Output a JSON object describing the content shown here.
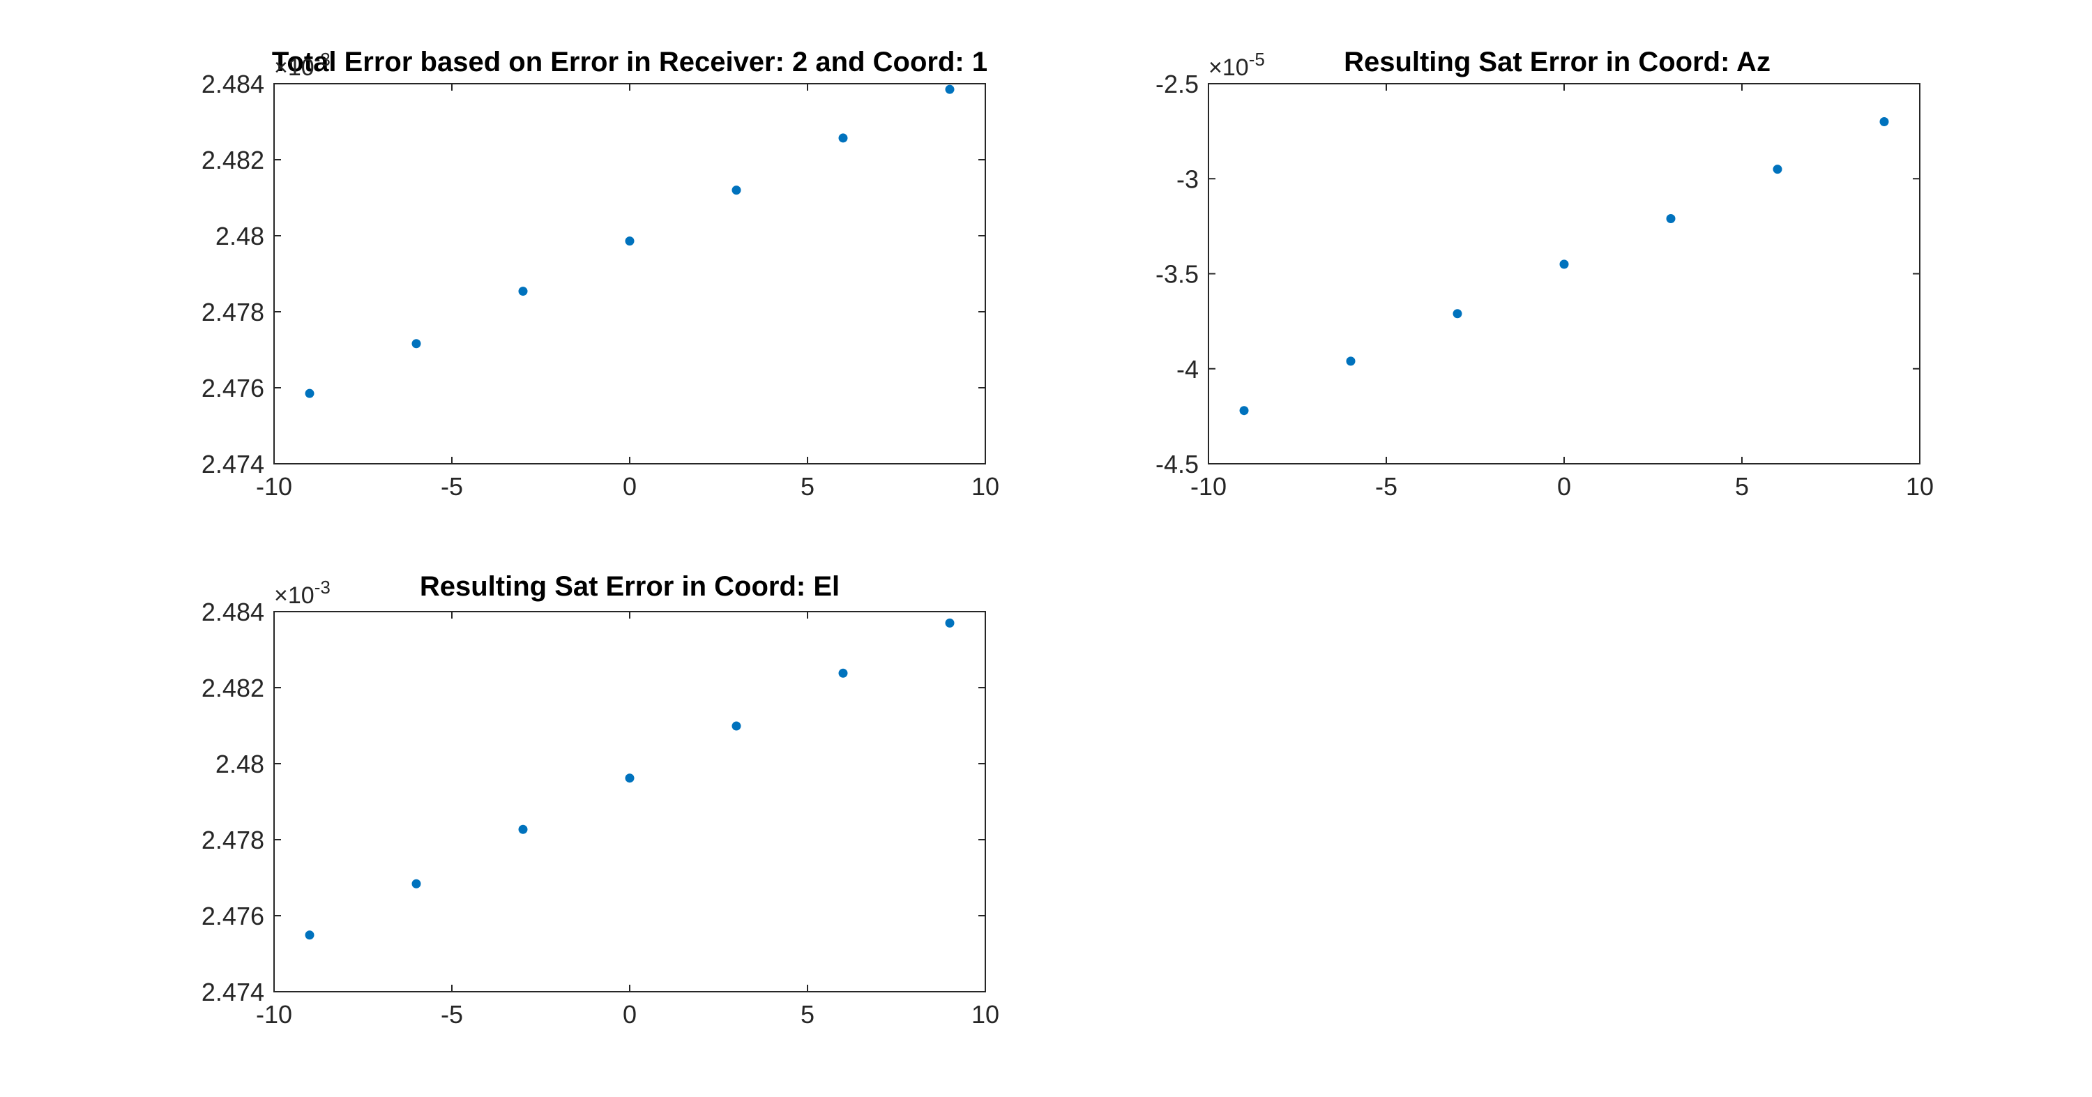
{
  "figure": {
    "background": "#ffffff",
    "axis_color": "#262626",
    "marker_color": "#0072bd"
  },
  "chart_data": [
    {
      "type": "scatter",
      "title": "Total Error based on Error in Receiver: 2 and Coord: 1",
      "xlabel": "",
      "ylabel": "",
      "xlim": [
        -10,
        10
      ],
      "ylim": [
        2.474,
        2.484
      ],
      "x_ticks": [
        "-10",
        "-5",
        "0",
        "5",
        "10"
      ],
      "y_ticks": [
        "2.474",
        "2.476",
        "2.478",
        "2.48",
        "2.482",
        "2.484"
      ],
      "y_exponent": "-3",
      "grid": false,
      "series": [
        {
          "x": [
            -9,
            -6,
            -3,
            0,
            3,
            6,
            9
          ],
          "y": [
            2.47585,
            2.47716,
            2.47854,
            2.47986,
            2.4812,
            2.48257,
            2.48385
          ]
        }
      ]
    },
    {
      "type": "scatter",
      "title": "Resulting Sat Error in Coord: Az",
      "xlabel": "",
      "ylabel": "",
      "xlim": [
        -10,
        10
      ],
      "ylim": [
        -4.5,
        -2.5
      ],
      "x_ticks": [
        "-10",
        "-5",
        "0",
        "5",
        "10"
      ],
      "y_ticks": [
        "-4.5",
        "-4",
        "-3.5",
        "-3",
        "-2.5"
      ],
      "y_exponent": "-5",
      "grid": false,
      "series": [
        {
          "x": [
            -9,
            -6,
            -3,
            0,
            3,
            6,
            9
          ],
          "y": [
            -4.22,
            -3.96,
            -3.71,
            -3.45,
            -3.21,
            -2.95,
            -2.7
          ]
        }
      ]
    },
    {
      "type": "scatter",
      "title": "Resulting Sat Error in Coord: El",
      "xlabel": "",
      "ylabel": "",
      "xlim": [
        -10,
        10
      ],
      "ylim": [
        2.474,
        2.484
      ],
      "x_ticks": [
        "-10",
        "-5",
        "0",
        "5",
        "10"
      ],
      "y_ticks": [
        "2.474",
        "2.476",
        "2.478",
        "2.48",
        "2.482",
        "2.484"
      ],
      "y_exponent": "-3",
      "grid": false,
      "series": [
        {
          "x": [
            -9,
            -6,
            -3,
            0,
            3,
            6,
            9
          ],
          "y": [
            2.47549,
            2.47684,
            2.47827,
            2.47962,
            2.48099,
            2.48238,
            2.4837
          ]
        }
      ]
    }
  ]
}
